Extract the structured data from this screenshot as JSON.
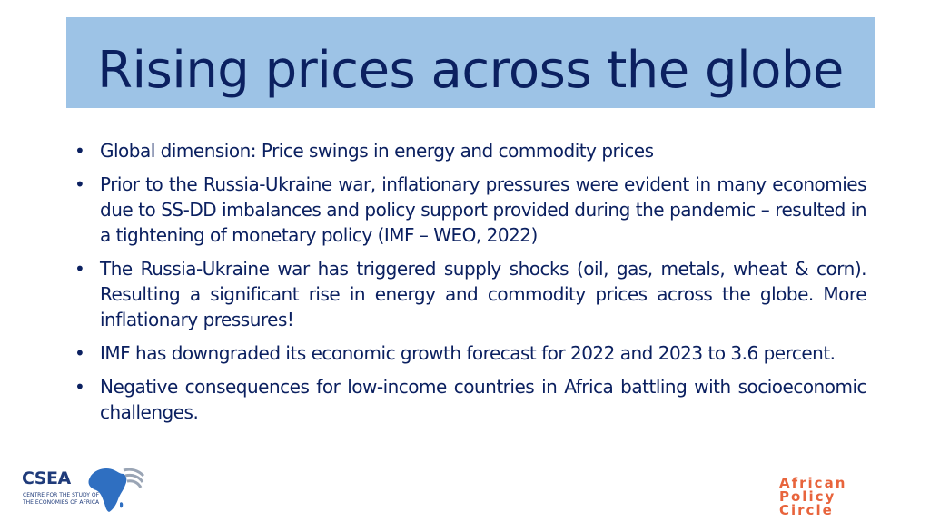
{
  "slide": {
    "title": "Rising prices across the globe",
    "bullets": [
      "Global dimension: Price swings in energy and commodity prices",
      "Prior to the Russia-Ukraine war, inflationary pressures were evident in many economies due to SS-DD imbalances and policy support provided during the pandemic – resulted in a tightening of monetary policy (IMF – WEO, 2022)",
      "The Russia-Ukraine war has triggered supply shocks (oil, gas, metals, wheat & corn). Resulting a significant rise in energy and commodity prices across the globe. More inflationary pressures!",
      "IMF has downgraded its economic growth forecast for 2022 and 2023 to 3.6 percent.",
      "Negative consequences for low-income countries in Africa battling with socioeconomic challenges."
    ],
    "bullet_symbol": "•"
  },
  "logos": {
    "csea": {
      "name": "CSEA",
      "sub_line_1": "CENTRE FOR THE STUDY OF",
      "sub_line_2": "THE ECONOMIES OF AFRICA",
      "icon": "africa-map-icon"
    },
    "apc": {
      "line_1": "African",
      "line_2": "Policy",
      "line_3": "Circle"
    }
  },
  "colors": {
    "title_bar": "#9dc3e6",
    "text": "#0b2060",
    "csea_blue": "#1f3b7a",
    "apc_orange": "#e8643c"
  }
}
